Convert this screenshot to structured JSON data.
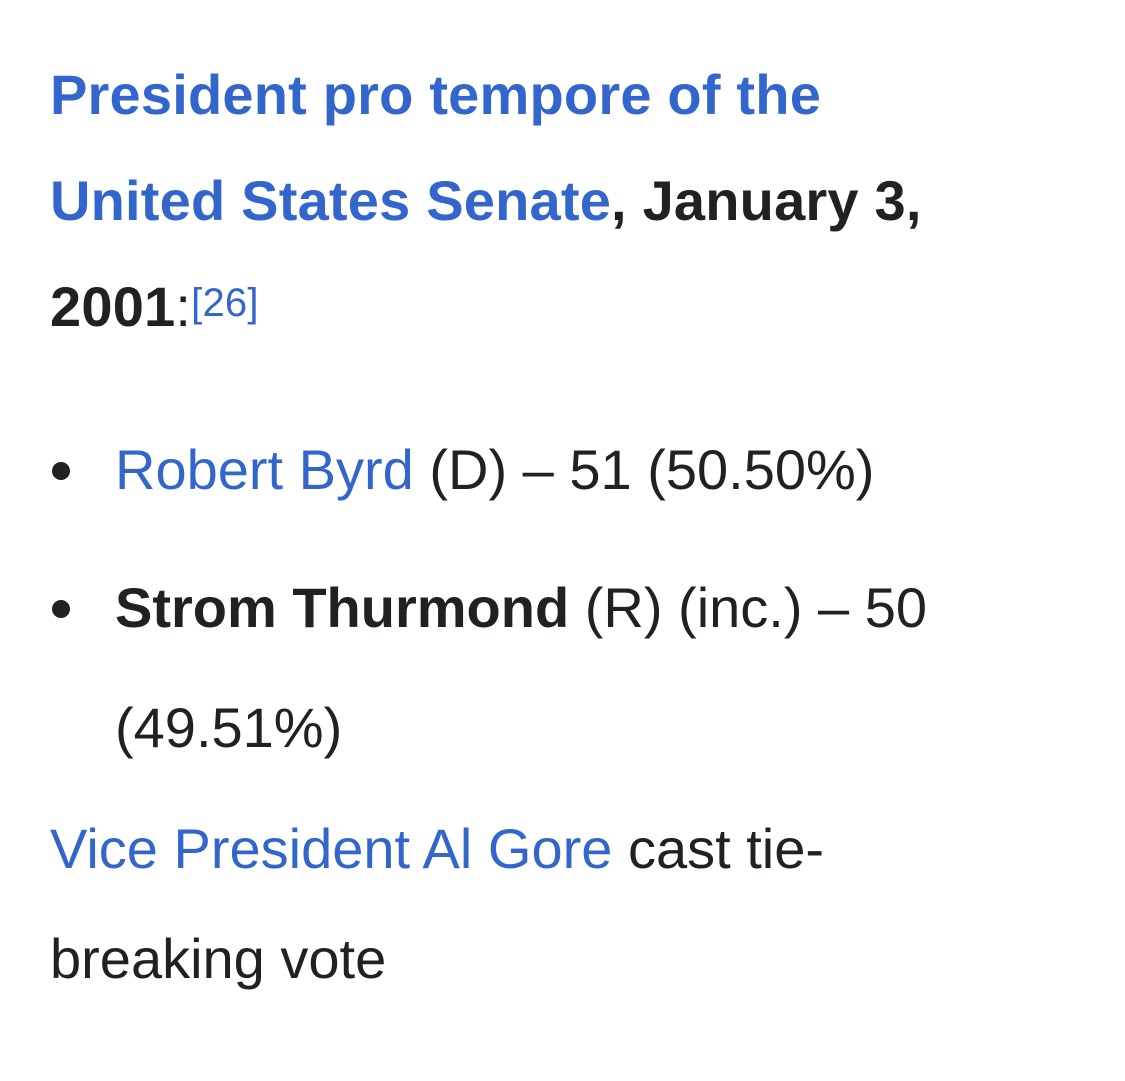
{
  "heading": {
    "link_part1": "President pro tempore of the",
    "link_part2": "United States Senate",
    "date_part1": ", January 3,",
    "date_part2": "2001",
    "colon": ":",
    "citation": "[26]"
  },
  "results": [
    {
      "candidate": "Robert Byrd",
      "details": " (D) – 51 (50.50%)"
    },
    {
      "candidate": "Strom Thurmond",
      "details_line1": " (R) (inc.) – 50",
      "details_line2": "(49.51%)"
    }
  ],
  "note": {
    "link": "Vice President Al Gore",
    "text_line1": " cast tie-",
    "text_line2": "breaking vote"
  },
  "colors": {
    "link": "#3366cc",
    "text": "#202122",
    "background": "#ffffff"
  }
}
